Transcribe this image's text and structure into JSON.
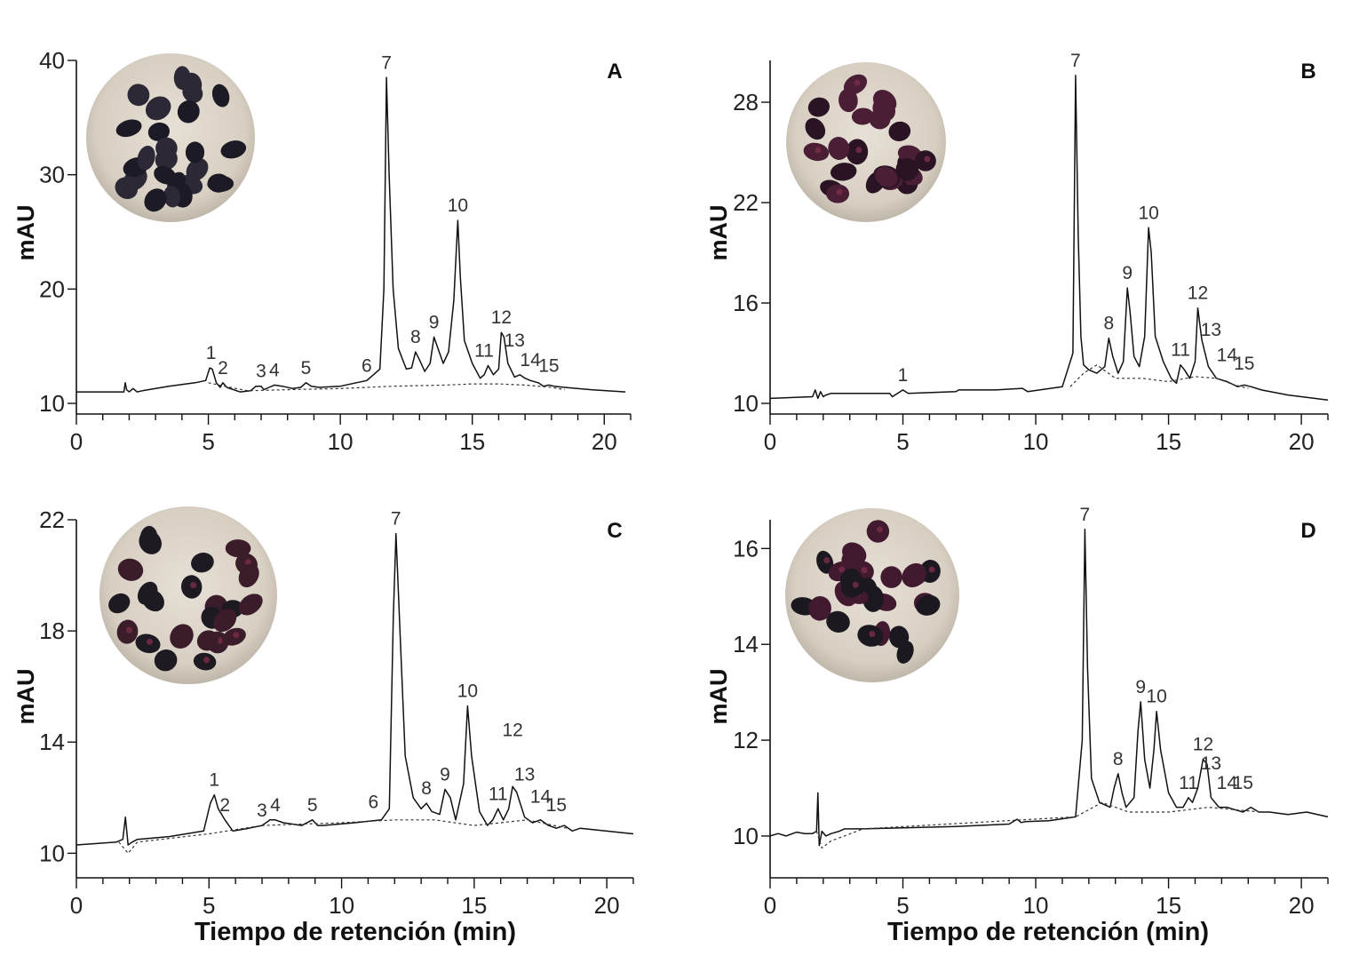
{
  "figure": {
    "xlabel": "Tiempo de retención (min)",
    "ylabel": "mAU",
    "colors": {
      "trace": "#111111",
      "baseline": "#333333",
      "axis": "#111111"
    }
  },
  "chart_data": [
    {
      "type": "line",
      "panel": "A",
      "xlabel": "",
      "ylabel": "mAU",
      "xlim": [
        0,
        21
      ],
      "ylim": [
        10,
        40
      ],
      "xticks": [
        0,
        5,
        10,
        15,
        20
      ],
      "yticks": [
        10,
        20,
        30,
        40
      ],
      "photo": "black-corn-kernels",
      "series": [
        {
          "name": "chromatogram",
          "style": "solid",
          "x": [
            0,
            1.8,
            1.85,
            1.9,
            2.0,
            2.15,
            2.3,
            2.5,
            3.5,
            4.5,
            4.9,
            5.05,
            5.15,
            5.3,
            5.45,
            5.55,
            5.7,
            6.2,
            6.6,
            6.8,
            7.0,
            7.1,
            7.3,
            7.5,
            7.8,
            8.2,
            8.5,
            8.7,
            8.9,
            9.2,
            10.0,
            11.0,
            11.5,
            11.65,
            11.75,
            11.85,
            12.0,
            12.2,
            12.5,
            12.7,
            12.85,
            13.0,
            13.2,
            13.4,
            13.55,
            13.7,
            13.9,
            14.1,
            14.3,
            14.45,
            14.55,
            14.7,
            15.0,
            15.3,
            15.45,
            15.6,
            15.8,
            16.0,
            16.1,
            16.2,
            16.35,
            16.6,
            16.8,
            17.0,
            17.2,
            17.5,
            17.7,
            17.9,
            18.1,
            18.5,
            19.5,
            20.8
          ],
          "y": [
            11,
            11,
            11.8,
            11.2,
            11.0,
            11.3,
            11.0,
            11.1,
            11.5,
            11.8,
            12.0,
            13.1,
            13.0,
            11.8,
            11.4,
            11.8,
            11.4,
            11.0,
            11.1,
            11.5,
            11.5,
            11.2,
            11.4,
            11.6,
            11.5,
            11.3,
            11.4,
            11.8,
            11.5,
            11.4,
            11.5,
            12.0,
            13.0,
            20.0,
            38.5,
            30.0,
            20.0,
            14.8,
            13.0,
            13.1,
            14.5,
            13.8,
            12.8,
            13.5,
            15.8,
            14.8,
            13.5,
            14.5,
            19.0,
            26.0,
            21.0,
            15.5,
            13.5,
            12.2,
            12.5,
            13.3,
            12.5,
            13.0,
            16.2,
            15.8,
            13.5,
            12.3,
            12.5,
            12.2,
            12.0,
            11.8,
            11.5,
            11.6,
            11.5,
            11.4,
            11.2,
            11.0
          ]
        },
        {
          "name": "baseline",
          "style": "dashed",
          "x": [
            5.0,
            5.6,
            6.5,
            8.0,
            10.0,
            12.0,
            14.0,
            15.0,
            16.0,
            17.0,
            18.0,
            18.5
          ],
          "y": [
            11.8,
            11.5,
            11.1,
            11.2,
            11.3,
            11.5,
            11.6,
            11.7,
            11.7,
            11.6,
            11.4,
            11.2
          ]
        }
      ],
      "peaks": [
        {
          "label": "1",
          "x": 5.1,
          "y": 13.1
        },
        {
          "label": "2",
          "x": 5.55,
          "y": 11.8
        },
        {
          "label": "3",
          "x": 7.0,
          "y": 11.5
        },
        {
          "label": "4",
          "x": 7.5,
          "y": 11.6
        },
        {
          "label": "5",
          "x": 8.7,
          "y": 11.8
        },
        {
          "label": "6",
          "x": 11.0,
          "y": 12.0
        },
        {
          "label": "7",
          "x": 11.75,
          "y": 38.5
        },
        {
          "label": "8",
          "x": 12.85,
          "y": 14.5
        },
        {
          "label": "9",
          "x": 13.55,
          "y": 15.8
        },
        {
          "label": "10",
          "x": 14.45,
          "y": 26.0
        },
        {
          "label": "11",
          "x": 15.45,
          "y": 13.3
        },
        {
          "label": "12",
          "x": 16.1,
          "y": 16.2
        },
        {
          "label": "13",
          "x": 16.6,
          "y": 14.2
        },
        {
          "label": "14",
          "x": 17.2,
          "y": 12.5
        },
        {
          "label": "15",
          "x": 17.9,
          "y": 12.0
        }
      ]
    },
    {
      "type": "line",
      "panel": "B",
      "xlabel": "",
      "ylabel": "mAU",
      "xlim": [
        0,
        21
      ],
      "ylim": [
        10,
        30.5
      ],
      "xticks": [
        0,
        5,
        10,
        15,
        20
      ],
      "yticks": [
        10,
        16,
        22,
        28
      ],
      "photo": "dark-purple-corn-kernels",
      "series": [
        {
          "name": "chromatogram",
          "style": "solid",
          "x": [
            0,
            1.6,
            1.7,
            1.8,
            1.9,
            2.0,
            2.1,
            2.3,
            4.5,
            4.6,
            4.8,
            5.0,
            5.2,
            7.0,
            7.1,
            8.5,
            9.5,
            9.7,
            11.0,
            11.4,
            11.5,
            11.6,
            11.7,
            11.8,
            12.0,
            12.3,
            12.6,
            12.75,
            12.9,
            13.1,
            13.3,
            13.45,
            13.55,
            13.7,
            13.9,
            14.1,
            14.25,
            14.35,
            14.5,
            14.8,
            15.1,
            15.3,
            15.45,
            15.6,
            15.8,
            16.0,
            16.1,
            16.25,
            16.5,
            16.8,
            17.2,
            17.6,
            17.85,
            18.1,
            18.5,
            19.5,
            21.0
          ],
          "y": [
            10.3,
            10.4,
            10.8,
            10.3,
            10.7,
            10.4,
            10.5,
            10.6,
            10.6,
            10.4,
            10.6,
            10.8,
            10.6,
            10.7,
            10.8,
            10.8,
            10.9,
            10.7,
            11.0,
            13.0,
            29.6,
            20.0,
            14.0,
            12.3,
            12.0,
            11.8,
            12.2,
            13.9,
            12.8,
            11.8,
            12.5,
            16.9,
            15.5,
            12.8,
            12.2,
            14.0,
            20.5,
            19.0,
            14.0,
            12.5,
            11.5,
            11.2,
            12.3,
            12.0,
            11.5,
            12.5,
            15.7,
            13.8,
            12.2,
            11.5,
            11.3,
            11.0,
            11.1,
            11.0,
            10.8,
            10.5,
            10.2
          ]
        },
        {
          "name": "baseline",
          "style": "dashed",
          "x": [
            11.3,
            11.8,
            12.3,
            13.0,
            14.0,
            15.0,
            16.0,
            16.8,
            17.5,
            18.0
          ],
          "y": [
            11.0,
            11.8,
            12.3,
            11.5,
            11.5,
            11.3,
            11.6,
            11.5,
            11.1,
            10.9
          ]
        }
      ],
      "peaks": [
        {
          "label": "1",
          "x": 5.0,
          "y": 10.8
        },
        {
          "label": "7",
          "x": 11.5,
          "y": 29.6
        },
        {
          "label": "8",
          "x": 12.75,
          "y": 13.9
        },
        {
          "label": "9",
          "x": 13.45,
          "y": 16.9
        },
        {
          "label": "10",
          "x": 14.25,
          "y": 20.5
        },
        {
          "label": "11",
          "x": 15.45,
          "y": 12.3
        },
        {
          "label": "12",
          "x": 16.1,
          "y": 15.7
        },
        {
          "label": "13",
          "x": 16.6,
          "y": 13.5
        },
        {
          "label": "14",
          "x": 17.2,
          "y": 12.0
        },
        {
          "label": "15",
          "x": 17.85,
          "y": 11.5
        }
      ]
    },
    {
      "type": "line",
      "panel": "C",
      "xlabel": "Tiempo de retención (min)",
      "ylabel": "mAU",
      "xlim": [
        0,
        21
      ],
      "ylim": [
        9.5,
        22
      ],
      "xticks": [
        0,
        5,
        10,
        15,
        20
      ],
      "yticks": [
        10,
        14,
        18,
        22
      ],
      "photo": "black-red-corn-kernels",
      "series": [
        {
          "name": "chromatogram",
          "style": "solid",
          "x": [
            0,
            1.5,
            1.75,
            1.85,
            1.95,
            2.1,
            2.3,
            3.5,
            4.8,
            5.05,
            5.2,
            5.35,
            5.6,
            5.9,
            6.5,
            7.0,
            7.3,
            7.5,
            7.8,
            8.5,
            8.9,
            9.1,
            9.3,
            10.5,
            11.5,
            11.8,
            11.95,
            12.05,
            12.2,
            12.4,
            12.7,
            13.0,
            13.2,
            13.4,
            13.7,
            13.9,
            14.1,
            14.3,
            14.6,
            14.75,
            14.9,
            15.2,
            15.5,
            15.7,
            15.9,
            16.1,
            16.3,
            16.45,
            16.6,
            16.9,
            17.2,
            17.5,
            17.8,
            18.1,
            18.4,
            18.7,
            19.0,
            21.0
          ],
          "y": [
            10.3,
            10.4,
            10.5,
            11.3,
            10.3,
            10.4,
            10.5,
            10.6,
            10.8,
            11.8,
            12.1,
            11.6,
            11.2,
            10.8,
            10.9,
            11.0,
            11.2,
            11.2,
            11.1,
            11.0,
            11.2,
            11.0,
            11.0,
            11.1,
            11.2,
            11.6,
            18.5,
            21.5,
            18.0,
            13.5,
            12.0,
            11.6,
            11.8,
            11.5,
            11.4,
            12.3,
            12.0,
            11.2,
            12.5,
            15.3,
            13.5,
            11.5,
            11.0,
            11.2,
            11.6,
            11.2,
            11.6,
            12.4,
            12.2,
            11.3,
            11.1,
            11.2,
            11.0,
            10.9,
            11.0,
            10.8,
            10.9,
            10.7
          ]
        },
        {
          "name": "baseline",
          "style": "dashed",
          "x": [
            1.6,
            1.95,
            2.3,
            5.0,
            7.0,
            10.0,
            12.0,
            13.5,
            15.0,
            16.0,
            17.0,
            18.5
          ],
          "y": [
            10.4,
            10.0,
            10.4,
            10.7,
            11.0,
            11.1,
            11.2,
            11.2,
            11.0,
            11.1,
            11.2,
            10.9
          ]
        }
      ],
      "peaks": [
        {
          "label": "1",
          "x": 5.2,
          "y": 12.1
        },
        {
          "label": "2",
          "x": 5.6,
          "y": 11.2
        },
        {
          "label": "3",
          "x": 7.0,
          "y": 11.0
        },
        {
          "label": "4",
          "x": 7.5,
          "y": 11.2
        },
        {
          "label": "5",
          "x": 8.9,
          "y": 11.2
        },
        {
          "label": "6",
          "x": 11.2,
          "y": 11.3
        },
        {
          "label": "7",
          "x": 12.05,
          "y": 21.5
        },
        {
          "label": "8",
          "x": 13.2,
          "y": 11.8
        },
        {
          "label": "9",
          "x": 13.9,
          "y": 12.3
        },
        {
          "label": "10",
          "x": 14.75,
          "y": 15.3
        },
        {
          "label": "11",
          "x": 15.9,
          "y": 11.6
        },
        {
          "label": "12",
          "x": 16.45,
          "y": 13.9
        },
        {
          "label": "13",
          "x": 16.9,
          "y": 12.3
        },
        {
          "label": "14",
          "x": 17.5,
          "y": 11.5
        },
        {
          "label": "15",
          "x": 18.1,
          "y": 11.2
        }
      ]
    },
    {
      "type": "line",
      "panel": "D",
      "xlabel": "Tiempo de retención (min)",
      "ylabel": "mAU",
      "xlim": [
        0,
        21
      ],
      "ylim": [
        9.35,
        16.6
      ],
      "xticks": [
        0,
        5,
        10,
        15,
        20
      ],
      "yticks": [
        10,
        12,
        14,
        16
      ],
      "photo": "black-purple-corn-kernels",
      "series": [
        {
          "name": "chromatogram",
          "style": "solid",
          "x": [
            0,
            0.3,
            0.6,
            1.0,
            1.3,
            1.6,
            1.75,
            1.8,
            1.85,
            1.95,
            2.1,
            2.3,
            2.6,
            2.8,
            3.5,
            5.0,
            7.0,
            9.0,
            9.3,
            9.45,
            9.6,
            10.5,
            11.5,
            11.75,
            11.85,
            11.95,
            12.1,
            12.4,
            12.8,
            12.95,
            13.1,
            13.25,
            13.4,
            13.7,
            13.85,
            13.95,
            14.1,
            14.3,
            14.45,
            14.55,
            14.7,
            15.0,
            15.3,
            15.55,
            15.75,
            15.9,
            16.1,
            16.3,
            16.45,
            16.6,
            16.9,
            17.2,
            17.5,
            17.8,
            18.1,
            18.4,
            18.8,
            19.5,
            20.2,
            21.0
          ],
          "y": [
            10.0,
            10.05,
            10.0,
            10.08,
            10.05,
            10.05,
            10.1,
            10.9,
            9.8,
            10.1,
            10.0,
            10.05,
            10.1,
            10.15,
            10.15,
            10.17,
            10.2,
            10.25,
            10.35,
            10.28,
            10.3,
            10.32,
            10.4,
            12.0,
            16.4,
            13.5,
            11.2,
            10.7,
            10.6,
            11.0,
            11.3,
            10.9,
            10.6,
            10.8,
            12.2,
            12.8,
            11.6,
            11.0,
            11.8,
            12.6,
            11.8,
            10.9,
            10.6,
            10.6,
            10.8,
            10.7,
            11.0,
            11.6,
            11.5,
            10.8,
            10.6,
            10.6,
            10.55,
            10.5,
            10.6,
            10.5,
            10.5,
            10.45,
            10.5,
            10.4
          ]
        },
        {
          "name": "baseline",
          "style": "dashed",
          "x": [
            1.75,
            1.95,
            2.3,
            2.8,
            3.5,
            11.5,
            12.5,
            13.5,
            15.0,
            16.5,
            17.5,
            18.5
          ],
          "y": [
            10.1,
            9.75,
            9.9,
            10.0,
            10.15,
            10.4,
            10.7,
            10.5,
            10.5,
            10.6,
            10.55,
            10.5
          ]
        }
      ],
      "peaks": [
        {
          "label": "7",
          "x": 11.85,
          "y": 16.4
        },
        {
          "label": "8",
          "x": 13.1,
          "y": 11.3
        },
        {
          "label": "9",
          "x": 13.95,
          "y": 12.8
        },
        {
          "label": "10",
          "x": 14.55,
          "y": 12.6
        },
        {
          "label": "11",
          "x": 15.75,
          "y": 10.8
        },
        {
          "label": "12",
          "x": 16.3,
          "y": 11.6
        },
        {
          "label": "13",
          "x": 16.6,
          "y": 11.2
        },
        {
          "label": "14",
          "x": 17.2,
          "y": 10.8
        },
        {
          "label": "15",
          "x": 17.8,
          "y": 10.8
        }
      ]
    }
  ]
}
